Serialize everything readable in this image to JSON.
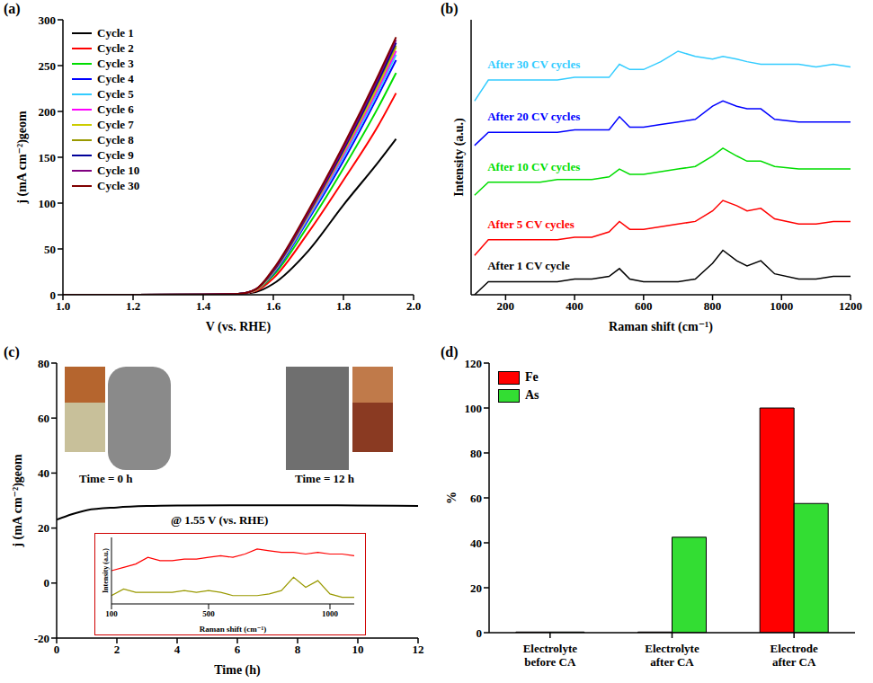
{
  "chart_data": [
    {
      "panel": "(a)",
      "type": "line",
      "x_label": "V (vs. RHE)",
      "y_label": "j (mA cm⁻²)geom",
      "x": [
        1,
        1.2,
        1.4,
        1.5,
        1.55,
        1.6,
        1.7,
        1.8,
        1.9,
        1.95
      ],
      "xlim": [
        1,
        2
      ],
      "xticks": [
        {
          "value": 1,
          "label": "1.0"
        },
        1.2,
        1.4,
        1.6,
        1.8,
        {
          "value": 2,
          "label": "2.0"
        }
      ],
      "ylim": [
        0,
        300
      ],
      "yticks": [
        0,
        50,
        100,
        150,
        200,
        250,
        300
      ],
      "legend": "upper left",
      "series": [
        {
          "name": "Cycle 1",
          "color": "#000000",
          "values": [
            0,
            0,
            0.2,
            0.8,
            3,
            12,
            48,
            98,
            145,
            170
          ]
        },
        {
          "name": "Cycle 2",
          "color": "#ff0000",
          "values": [
            0,
            0,
            0.2,
            1,
            4,
            18,
            68,
            125,
            185,
            220
          ]
        },
        {
          "name": "Cycle 3",
          "color": "#00dd00",
          "values": [
            0,
            0,
            0.2,
            1,
            5,
            21,
            76,
            138,
            205,
            242
          ]
        },
        {
          "name": "Cycle 4",
          "color": "#0000ff",
          "values": [
            0,
            0,
            0.2,
            1,
            5,
            23,
            82,
            146,
            218,
            256
          ]
        },
        {
          "name": "Cycle 5",
          "color": "#33ccff",
          "values": [
            0,
            0,
            0.2,
            1,
            5,
            24,
            84,
            150,
            222,
            262
          ]
        },
        {
          "name": "Cycle 6",
          "color": "#ff00ff",
          "values": [
            0,
            0,
            0.2,
            1,
            5,
            25,
            86,
            153,
            226,
            266
          ]
        },
        {
          "name": "Cycle 7",
          "color": "#cccc00",
          "values": [
            0,
            0,
            0.2,
            1,
            5,
            25,
            87,
            155,
            229,
            270
          ]
        },
        {
          "name": "Cycle 8",
          "color": "#999900",
          "values": [
            0,
            0,
            0.2,
            1,
            6,
            26,
            88,
            157,
            232,
            272
          ]
        },
        {
          "name": "Cycle 9",
          "color": "#000099",
          "values": [
            0,
            0,
            0.2,
            1,
            6,
            26,
            89,
            158,
            234,
            275
          ]
        },
        {
          "name": "Cycle 10",
          "color": "#800080",
          "values": [
            0,
            0,
            0.2,
            1,
            6,
            27,
            90,
            160,
            237,
            278
          ]
        },
        {
          "name": "Cycle 30",
          "color": "#800000",
          "values": [
            0,
            0,
            0.2,
            1,
            6,
            28,
            92,
            163,
            240,
            281
          ]
        }
      ]
    },
    {
      "panel": "(b)",
      "type": "line",
      "x_label": "Raman shift (cm⁻¹)",
      "y_label": "Intensity (a.u.)",
      "tick_labels": "x",
      "x": [
        110,
        150,
        200,
        250,
        300,
        350,
        400,
        450,
        500,
        530,
        560,
        600,
        650,
        700,
        750,
        800,
        830,
        870,
        900,
        940,
        980,
        1050,
        1100,
        1150,
        1200
      ],
      "xlim": [
        100,
        1200
      ],
      "xticks": [
        200,
        400,
        600,
        800,
        1000,
        1200
      ],
      "ylim": [
        0,
        105
      ],
      "series": [
        {
          "name": "After 1 CV cycle",
          "color": "#000000",
          "values": [
            0,
            5,
            5,
            5,
            5,
            5,
            6,
            6,
            7,
            10,
            6,
            5,
            5,
            5,
            6,
            12,
            17,
            13,
            11,
            13,
            8,
            6,
            6,
            7,
            7
          ]
        },
        {
          "name": "After 5 CV cycles",
          "color": "#ff0000",
          "values": [
            15,
            21,
            21,
            21,
            21,
            21,
            22,
            22,
            24,
            28,
            25,
            25,
            26,
            27,
            28,
            32,
            36,
            34,
            32,
            33,
            29,
            27,
            27,
            28,
            28
          ]
        },
        {
          "name": "After 10 CV cycles",
          "color": "#00dd00",
          "values": [
            38,
            43,
            43,
            43,
            43,
            44,
            44,
            44,
            45,
            48,
            46,
            46,
            47,
            48,
            49,
            53,
            56,
            53,
            51,
            51,
            49,
            48,
            48,
            48,
            48
          ]
        },
        {
          "name": "After 20 CV cycles",
          "color": "#0000ff",
          "values": [
            57,
            62,
            62,
            62,
            62,
            62,
            63,
            63,
            63,
            68,
            64,
            64,
            65,
            66,
            67,
            72,
            74,
            72,
            71,
            71,
            67,
            66,
            66,
            66,
            66
          ]
        },
        {
          "name": "After 30 CV cycles",
          "color": "#33ccff",
          "values": [
            74,
            82,
            82,
            82,
            82,
            82,
            83,
            83,
            83,
            88,
            86,
            86,
            89,
            93,
            91,
            90,
            91,
            90,
            89,
            88,
            88,
            88,
            87,
            88,
            87
          ]
        }
      ]
    },
    {
      "panel": "(c)",
      "type": "line",
      "x_label": "Time (h)",
      "y_label": "j (mA cm⁻²)geom",
      "condition_label": "@ 1.55 V (vs. RHE)",
      "image_labels": [
        "Time = 0 h",
        "Time = 12 h"
      ],
      "x": [
        0,
        0.5,
        1,
        2,
        3,
        4,
        6,
        8,
        10,
        12
      ],
      "xlim": [
        0,
        12
      ],
      "xticks": [
        0,
        2,
        4,
        6,
        8,
        10,
        12
      ],
      "ylim": [
        -20,
        80
      ],
      "yticks": [
        -20,
        0,
        20,
        40,
        60,
        80
      ],
      "series": [
        {
          "color": "#000000",
          "values": [
            23,
            25,
            26.5,
            27.5,
            28,
            28.2,
            28.3,
            28.3,
            28.2,
            28
          ]
        }
      ],
      "inset": {
        "type": "line",
        "x_label": "Raman shift (cm⁻¹)",
        "y_label": "Intensity (a.u.)",
        "tick_labels": "x",
        "x": [
          100,
          150,
          200,
          250,
          300,
          350,
          400,
          450,
          500,
          550,
          600,
          650,
          700,
          750,
          800,
          850,
          900,
          950,
          1000,
          1050,
          1100
        ],
        "xlim": [
          100,
          1100
        ],
        "xticks": [
          100,
          500,
          1000
        ],
        "ylim": [
          0,
          40
        ],
        "series": [
          {
            "color": "#ff0000",
            "values": [
              20,
              22,
              24,
              28,
              26,
              26,
              27,
              27,
              28,
              29,
              28,
              30,
              33,
              32,
              31,
              31,
              30,
              31,
              30,
              30,
              29
            ]
          },
          {
            "color": "#999900",
            "values": [
              5,
              9,
              7,
              7,
              7,
              7,
              8,
              7,
              8,
              7,
              5,
              5,
              5,
              6,
              8,
              16,
              10,
              14,
              6,
              4,
              4
            ]
          }
        ]
      }
    },
    {
      "panel": "(d)",
      "type": "bar",
      "y_label": "%",
      "categories": [
        "Electrolyte before CA",
        "Electrolyte after CA",
        "Electrode after CA"
      ],
      "ylim": [
        0,
        120
      ],
      "yticks": [
        0,
        20,
        40,
        60,
        80,
        100,
        120
      ],
      "legend": "upper left",
      "series": [
        {
          "name": "Fe",
          "color": "#ff0000",
          "values": [
            0.3,
            0.3,
            100
          ]
        },
        {
          "name": "As",
          "color": "#33dd33",
          "values": [
            0.3,
            42.5,
            57.5
          ]
        }
      ]
    }
  ]
}
